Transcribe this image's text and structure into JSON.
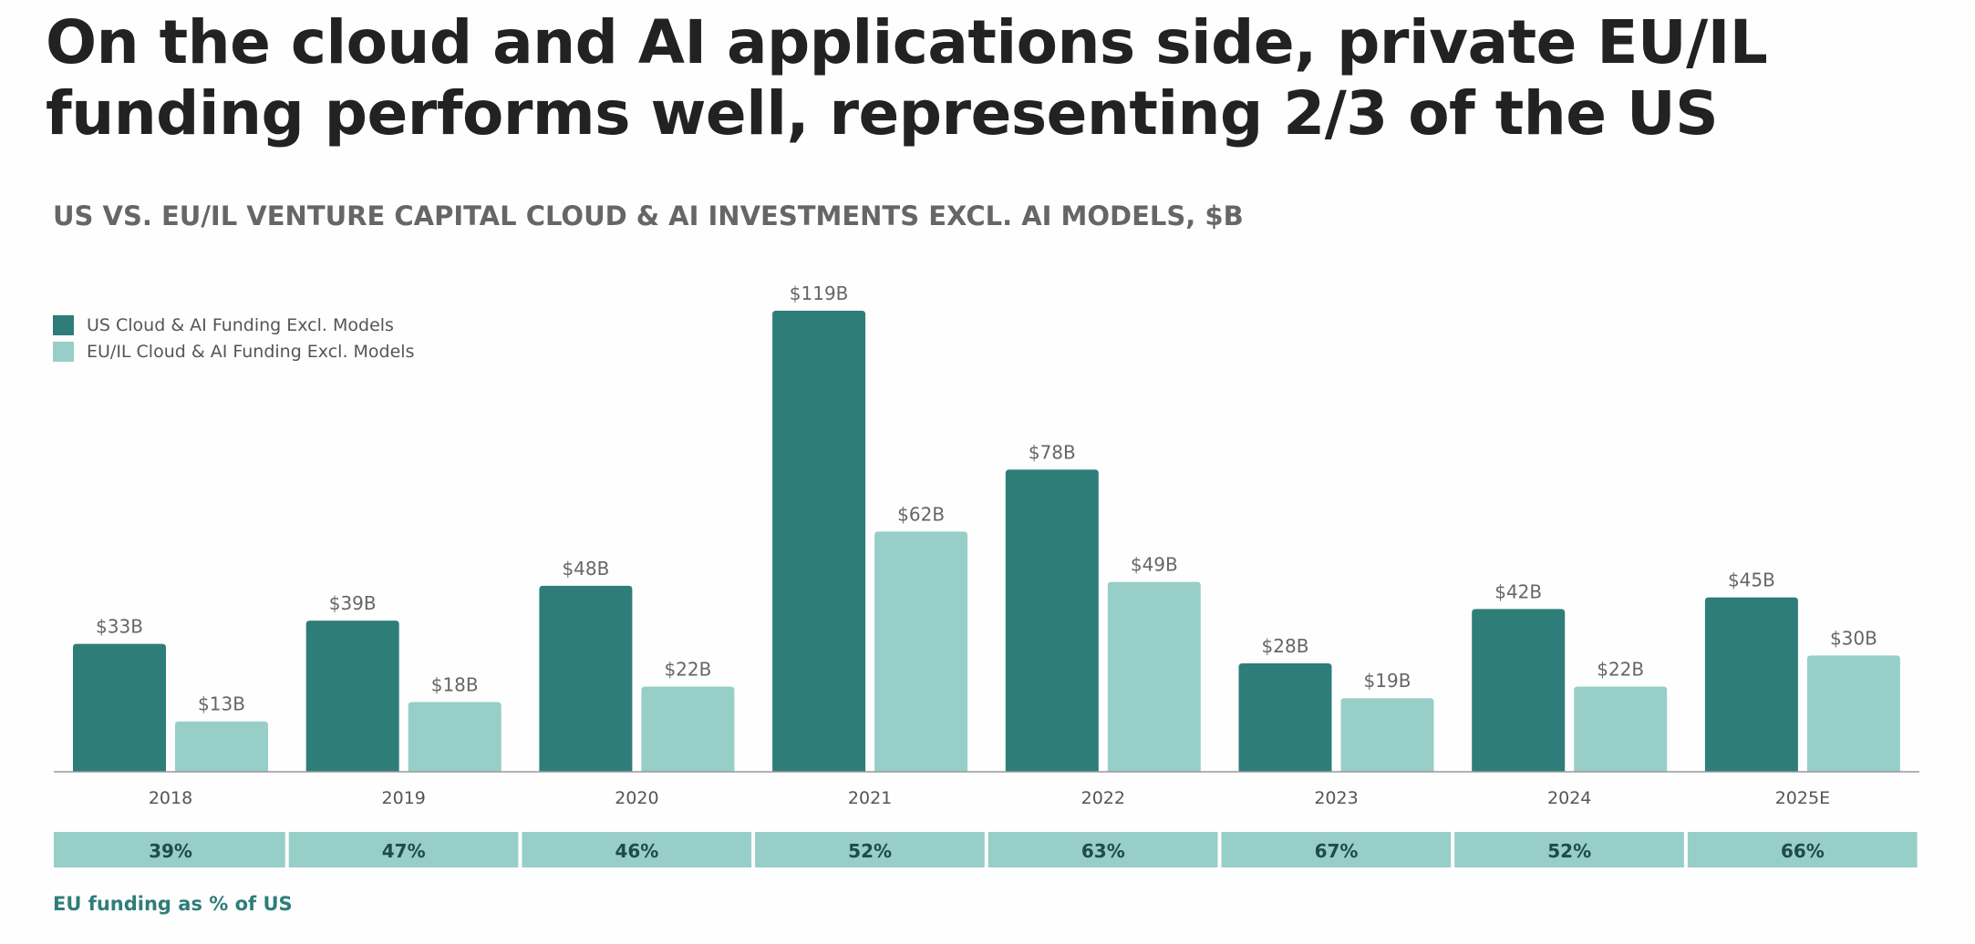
{
  "title_lines": [
    "On the cloud and AI applications side, private EU/IL",
    "funding performs well, representing 2/3 of the US"
  ],
  "footer": "EU funding as % of US",
  "colors": {
    "us": "#2e7d79",
    "eu": "#98cec8",
    "pct_text": "#1f4b48",
    "label": "#666666"
  },
  "chart_data": {
    "type": "bar",
    "title": "US VS. EU/IL VENTURE CAPITAL CLOUD & AI INVESTMENTS EXCL. AI MODELS, $B",
    "xlabel": "",
    "ylabel": "$B",
    "ylim": [
      0,
      119
    ],
    "grid": false,
    "legend_position": "top-left",
    "categories": [
      "2018",
      "2019",
      "2020",
      "2021",
      "2022",
      "2023",
      "2024",
      "2025E"
    ],
    "series": [
      {
        "name": "US Cloud & AI Funding Excl. Models",
        "values": [
          33,
          39,
          48,
          119,
          78,
          28,
          42,
          45
        ],
        "labels": [
          "$33B",
          "$39B",
          "$48B",
          "$119B",
          "$78B",
          "$28B",
          "$42B",
          "$45B"
        ]
      },
      {
        "name": "EU/IL Cloud & AI Funding Excl. Models",
        "values": [
          13,
          18,
          22,
          62,
          49,
          19,
          22,
          30
        ],
        "labels": [
          "$13B",
          "$18B",
          "$22B",
          "$62B",
          "$49B",
          "$19B",
          "$22B",
          "$30B"
        ]
      }
    ],
    "eu_pct_of_us": [
      "39%",
      "47%",
      "46%",
      "52%",
      "63%",
      "67%",
      "52%",
      "66%"
    ]
  }
}
